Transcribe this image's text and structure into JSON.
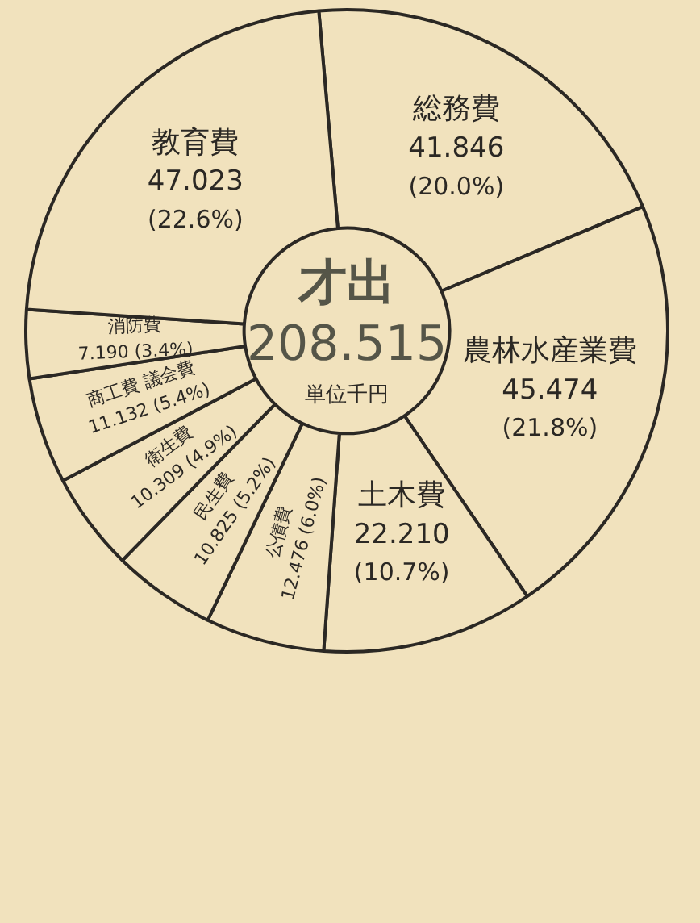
{
  "chart_data": {
    "type": "donut",
    "title": "才出",
    "annotations": [
      "208.515",
      "単位千円"
    ],
    "categories": [
      "総務費",
      "農林水産業費",
      "土木費",
      "公債費",
      "民生費",
      "衛生費",
      "商工費 議会費",
      "消防費",
      "教育費"
    ],
    "values": [
      41.846,
      45.474,
      22.21,
      12.476,
      10.825,
      10.309,
      11.132,
      7.19,
      47.023
    ],
    "value_labels": [
      "41.846 (20.0%)",
      "45.474 (21.8%)",
      "22.210 (10.7%)",
      "12.476 (6.0%)",
      "10.825 (5.2%)",
      "10.309 (4.9%)",
      "11.132 (5.4%)",
      "7.190 (3.4%)",
      "47.023 (22.6%)"
    ],
    "colors": [
      "#f1e2bd",
      "#f1e2bd",
      "#f1e2bd",
      "#f1e2bd",
      "#f1e2bd",
      "#f1e2bd",
      "#f1e2bd",
      "#f1e2bd",
      "#f1e2bd"
    ],
    "legend": false
  }
}
